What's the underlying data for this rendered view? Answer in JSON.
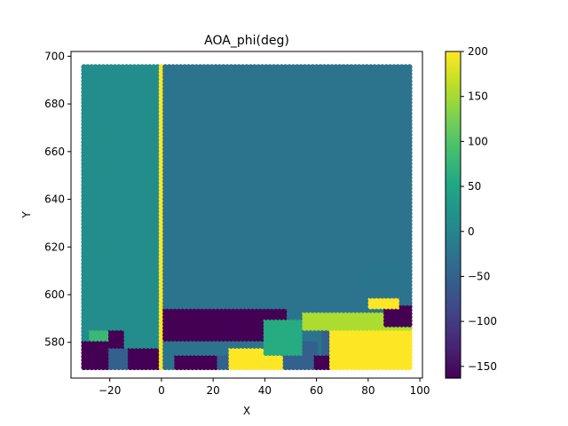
{
  "chart_data": {
    "type": "scatter",
    "title": "AOA_phi(deg)",
    "xlabel": "X",
    "ylabel": "Y",
    "xlim": [
      -35,
      101
    ],
    "ylim": [
      565,
      702
    ],
    "x_ticks": [
      -20,
      0,
      20,
      40,
      60,
      80,
      100
    ],
    "y_ticks": [
      580,
      600,
      620,
      640,
      660,
      680,
      700
    ],
    "colorbar": {
      "colormap": "viridis",
      "range": [
        -163,
        200
      ],
      "ticks": [
        -150,
        -100,
        -50,
        0,
        50,
        100,
        150,
        200
      ]
    },
    "grid": {
      "x_start": -30,
      "x_end": 96,
      "x_step": 1.5,
      "y_start": 569.5,
      "y_end": 696.5,
      "y_step": 1.5
    },
    "field": {
      "default_value": -24,
      "regions": [
        {
          "x": [
            -31,
            0
          ],
          "y": [
            569,
            697
          ],
          "value": 12
        },
        {
          "x": [
            -1.2,
            0.8
          ],
          "y": [
            569,
            697
          ],
          "value": 200
        },
        {
          "x": [
            78,
            96
          ],
          "y": [
            603,
            614
          ],
          "value": -22
        },
        {
          "x": [
            -31,
            -20
          ],
          "y": [
            569,
            581
          ],
          "value": -163
        },
        {
          "x": [
            -20,
            -12
          ],
          "y": [
            569,
            578
          ],
          "value": -52
        },
        {
          "x": [
            -12,
            -1
          ],
          "y": [
            569,
            578
          ],
          "value": -163
        },
        {
          "x": [
            -20,
            -14
          ],
          "y": [
            578,
            585
          ],
          "value": -163
        },
        {
          "x": [
            1,
            48
          ],
          "y": [
            581,
            594
          ],
          "value": -163
        },
        {
          "x": [
            5,
            22
          ],
          "y": [
            569,
            575
          ],
          "value": -163
        },
        {
          "x": [
            22,
            30
          ],
          "y": [
            569,
            575
          ],
          "value": -52
        },
        {
          "x": [
            26,
            48
          ],
          "y": [
            569,
            578
          ],
          "value": 200
        },
        {
          "x": [
            48,
            60
          ],
          "y": [
            569,
            580
          ],
          "value": -52
        },
        {
          "x": [
            60,
            70
          ],
          "y": [
            569,
            575
          ],
          "value": -163
        },
        {
          "x": [
            62,
            75
          ],
          "y": [
            575,
            590
          ],
          "value": -52
        },
        {
          "x": [
            66,
            96
          ],
          "y": [
            569,
            592
          ],
          "value": 200
        },
        {
          "x": [
            70,
            96
          ],
          "y": [
            585,
            592
          ],
          "value": 155
        },
        {
          "x": [
            86,
            96
          ],
          "y": [
            587,
            596
          ],
          "value": -163
        },
        {
          "x": [
            80,
            92
          ],
          "y": [
            595,
            598
          ],
          "value": 200
        },
        {
          "x": [
            55,
            75
          ],
          "y": [
            585,
            592
          ],
          "value": 155
        },
        {
          "x": [
            40,
            55
          ],
          "y": [
            575,
            590
          ],
          "value": 60
        },
        {
          "x": [
            -28,
            -20
          ],
          "y": [
            581,
            585
          ],
          "value": 80
        }
      ]
    }
  }
}
